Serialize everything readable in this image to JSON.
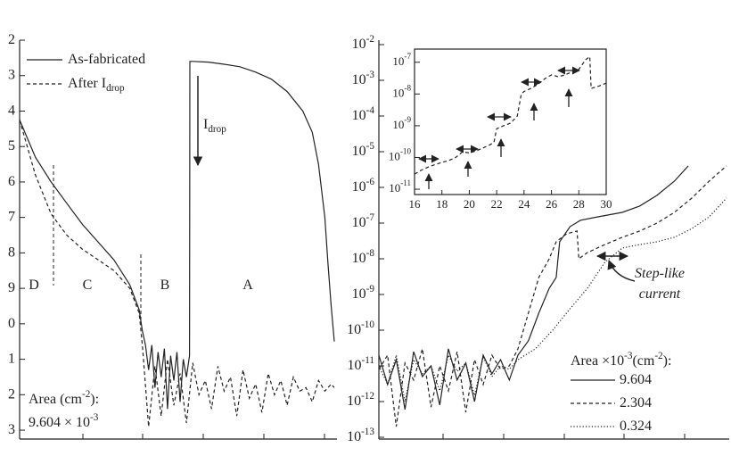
{
  "chart_data": [
    {
      "type": "line",
      "inverted": true,
      "ylim": [
        13.2,
        2
      ],
      "yticks": [
        2,
        3,
        4,
        5,
        6,
        7,
        8,
        9,
        {
          "value": 10,
          "label": "0"
        },
        {
          "value": 11,
          "label": "1"
        },
        {
          "value": 12,
          "label": "2"
        },
        {
          "value": 13,
          "label": "3"
        }
      ],
      "xlim": [
        0,
        10
      ],
      "regions": [
        "D",
        "C",
        "B",
        "A"
      ],
      "annotation": "I_drop",
      "note": [
        "Area (cm^-2):",
        "9.604 × 10^-3"
      ],
      "series": [
        {
          "name": "As-fabricated",
          "color": "#222222",
          "linestyle": "solid",
          "x": [
            0,
            0.5,
            1,
            1.5,
            2,
            2.5,
            3,
            3.5,
            3.8,
            3.9,
            4.0,
            4.1,
            4.2,
            4.3,
            4.4,
            4.5,
            4.6,
            4.7,
            4.8,
            4.9,
            5.0,
            5.1,
            5.2,
            5.3,
            5.4,
            5.41,
            5.5,
            6,
            6.5,
            7,
            7.5,
            8,
            8.5,
            9,
            9.3,
            9.5,
            9.7,
            9.8,
            9.9,
            10
          ],
          "values": [
            4.25,
            5.3,
            6.0,
            6.6,
            7.2,
            7.7,
            8.2,
            8.9,
            9.6,
            10.2,
            10.6,
            11.3,
            10.6,
            11.8,
            10.8,
            11.5,
            10.7,
            12.4,
            10.9,
            11.6,
            10.8,
            12.2,
            11.0,
            11.5,
            10.9,
            2.6,
            2.6,
            2.62,
            2.68,
            2.75,
            2.9,
            3.1,
            3.45,
            4.0,
            4.6,
            5.5,
            7.0,
            8.3,
            9.5,
            10.5
          ]
        },
        {
          "name": "After I_drop",
          "color": "#222222",
          "linestyle": "dashed",
          "x": [
            0,
            0.5,
            1,
            1.5,
            2,
            2.5,
            3,
            3.5,
            3.8,
            3.9,
            4.1,
            4.3,
            4.5,
            4.7,
            4.9,
            5.1,
            5.3,
            5.5,
            5.7,
            5.9,
            6.1,
            6.3,
            6.5,
            6.7,
            6.9,
            7.1,
            7.3,
            7.5,
            7.7,
            7.9,
            8.1,
            8.3,
            8.5,
            8.7,
            8.9,
            9.1,
            9.3,
            9.5,
            9.7,
            9.9,
            10
          ],
          "values": [
            4.25,
            5.8,
            6.9,
            7.5,
            7.9,
            8.2,
            8.5,
            9.0,
            9.7,
            10.6,
            12.9,
            11.2,
            12.6,
            11.0,
            12.3,
            11.4,
            12.8,
            11.1,
            12.0,
            11.6,
            12.4,
            11.2,
            11.9,
            11.5,
            12.6,
            11.3,
            12.1,
            11.7,
            12.5,
            11.4,
            12.0,
            11.6,
            12.3,
            11.5,
            11.9,
            11.8,
            12.2,
            11.6,
            11.9,
            11.7,
            11.8
          ]
        }
      ]
    },
    {
      "type": "line",
      "yscale": "log",
      "ylim": [
        1e-13,
        0.01
      ],
      "yticks": [
        {
          "value": 0.01,
          "label": "10^-2"
        },
        {
          "value": 0.001,
          "label": "10^-3"
        },
        {
          "value": 0.0001,
          "label": "10^-4"
        },
        {
          "value": 1e-05,
          "label": "10^-5"
        },
        {
          "value": 1e-06,
          "label": "10^-6"
        },
        {
          "value": 1e-07,
          "label": "10^-7"
        },
        {
          "value": 1e-08,
          "label": "10^-8"
        },
        {
          "value": 1e-09,
          "label": "10^-9"
        },
        {
          "value": 1e-10,
          "label": "10^-10"
        },
        {
          "value": 1e-11,
          "label": "10^-11"
        },
        {
          "value": 1e-12,
          "label": "10^-12"
        },
        {
          "value": 1e-13,
          "label": "10^-13"
        }
      ],
      "xlim": [
        0,
        10
      ],
      "legend_title": "Area ×10^-3(cm^-2):",
      "annotation": [
        "Step-like",
        "current"
      ],
      "series": [
        {
          "name": "9.604",
          "color": "#222222",
          "linestyle": "solid",
          "x": [
            0,
            0.25,
            0.5,
            0.75,
            1,
            1.25,
            1.5,
            1.75,
            2,
            2.25,
            2.5,
            2.75,
            3,
            3.25,
            3.5,
            3.75,
            4,
            4.3,
            4.6,
            4.9,
            5.1,
            5.2,
            5.5,
            5.8,
            6.3,
            7,
            7.5,
            8,
            8.5,
            8.9
          ],
          "values": [
            2e-11,
            3e-12,
            1.5e-11,
            6e-13,
            2.5e-11,
            5e-12,
            1e-11,
            8e-13,
            3e-11,
            4e-12,
            1.2e-11,
            1e-12,
            2e-11,
            6e-12,
            1.5e-11,
            4e-12,
            2e-11,
            5e-11,
            3e-10,
            1.5e-09,
            3e-09,
            3e-08,
            8e-08,
            1.2e-07,
            1.5e-07,
            2e-07,
            3e-07,
            6e-07,
            1.5e-06,
            4e-06
          ]
        },
        {
          "name": "2.304",
          "color": "#222222",
          "linestyle": "dashed",
          "x": [
            0,
            0.25,
            0.5,
            0.75,
            1,
            1.25,
            1.5,
            1.75,
            2,
            2.25,
            2.5,
            2.75,
            3,
            3.25,
            3.5,
            3.75,
            4,
            4.3,
            4.6,
            4.9,
            5.1,
            5.4,
            5.7,
            5.75,
            6.0,
            6.5,
            7,
            7.5,
            8,
            8.5,
            9,
            9.5,
            10
          ],
          "values": [
            8e-12,
            2e-11,
            2e-13,
            1.2e-11,
            4e-12,
            3e-11,
            7e-13,
            1e-11,
            2e-12,
            2.5e-11,
            5e-13,
            1.5e-11,
            3e-12,
            2e-11,
            8e-12,
            1e-11,
            3e-11,
            3e-10,
            3e-09,
            1e-08,
            3e-08,
            5e-08,
            6e-08,
            1e-08,
            1.5e-08,
            2.5e-08,
            4e-08,
            6e-08,
            1e-07,
            2e-07,
            5e-07,
            1.5e-06,
            4e-06
          ]
        },
        {
          "name": "0.324",
          "color": "#222222",
          "linestyle": "dotted",
          "x": [
            0,
            0.25,
            0.5,
            0.75,
            1,
            1.25,
            1.5,
            1.75,
            2,
            2.25,
            2.5,
            2.75,
            3,
            3.25,
            3.5,
            3.75,
            4,
            4.5,
            5,
            5.5,
            6,
            6.5,
            7,
            7.5,
            8,
            8.5,
            9,
            9.5,
            10
          ],
          "values": [
            1e-11,
            3e-12,
            2e-11,
            1e-12,
            1.5e-11,
            6e-12,
            1e-11,
            2e-12,
            2e-11,
            7e-12,
            1.2e-11,
            1.5e-12,
            1.8e-11,
            5e-12,
            1e-11,
            8e-12,
            1.5e-11,
            3e-11,
            1e-10,
            4e-10,
            1.5e-09,
            8e-09,
            2e-08,
            2.5e-08,
            3e-08,
            4e-08,
            7e-08,
            1.5e-07,
            5e-07
          ]
        }
      ]
    },
    {
      "type": "line",
      "yscale": "log",
      "inset": true,
      "ylim": [
        6.8e-12,
        2.6e-07
      ],
      "yticks": [
        {
          "value": 1e-07,
          "label": "10^-7"
        },
        {
          "value": 1e-08,
          "label": "10^-8"
        },
        {
          "value": 1e-09,
          "label": "10^-9"
        },
        {
          "value": 1e-10,
          "label": "10^-10"
        },
        {
          "value": 1e-11,
          "label": "10^-11"
        }
      ],
      "xlim": [
        16,
        30
      ],
      "xticks": [
        16,
        18,
        20,
        22,
        24,
        26,
        28,
        30
      ],
      "series": [
        {
          "color": "#222222",
          "linestyle": "dashed",
          "x": [
            16,
            16.5,
            17,
            17.5,
            18,
            18.5,
            19,
            19.5,
            20,
            20.5,
            21,
            21.5,
            21.8,
            22,
            22.5,
            23,
            23.5,
            23.8,
            24,
            24.5,
            25,
            25.5,
            26,
            26.5,
            27,
            27.5,
            28,
            28.5,
            28.8,
            28.9,
            29.5,
            30
          ],
          "values": [
            3e-11,
            4e-11,
            5e-11,
            6e-11,
            7e-11,
            8e-11,
            1e-10,
            1.5e-10,
            1.4e-10,
            1.6e-10,
            2e-10,
            2.5e-10,
            3e-10,
            8e-10,
            1e-09,
            1.2e-09,
            2e-09,
            1e-08,
            1.2e-08,
            1.5e-08,
            2e-08,
            3e-08,
            4e-08,
            3.5e-08,
            4e-08,
            5e-08,
            6e-08,
            1.2e-07,
            1.5e-07,
            1.5e-08,
            1.8e-08,
            2.2e-08
          ]
        }
      ]
    }
  ]
}
